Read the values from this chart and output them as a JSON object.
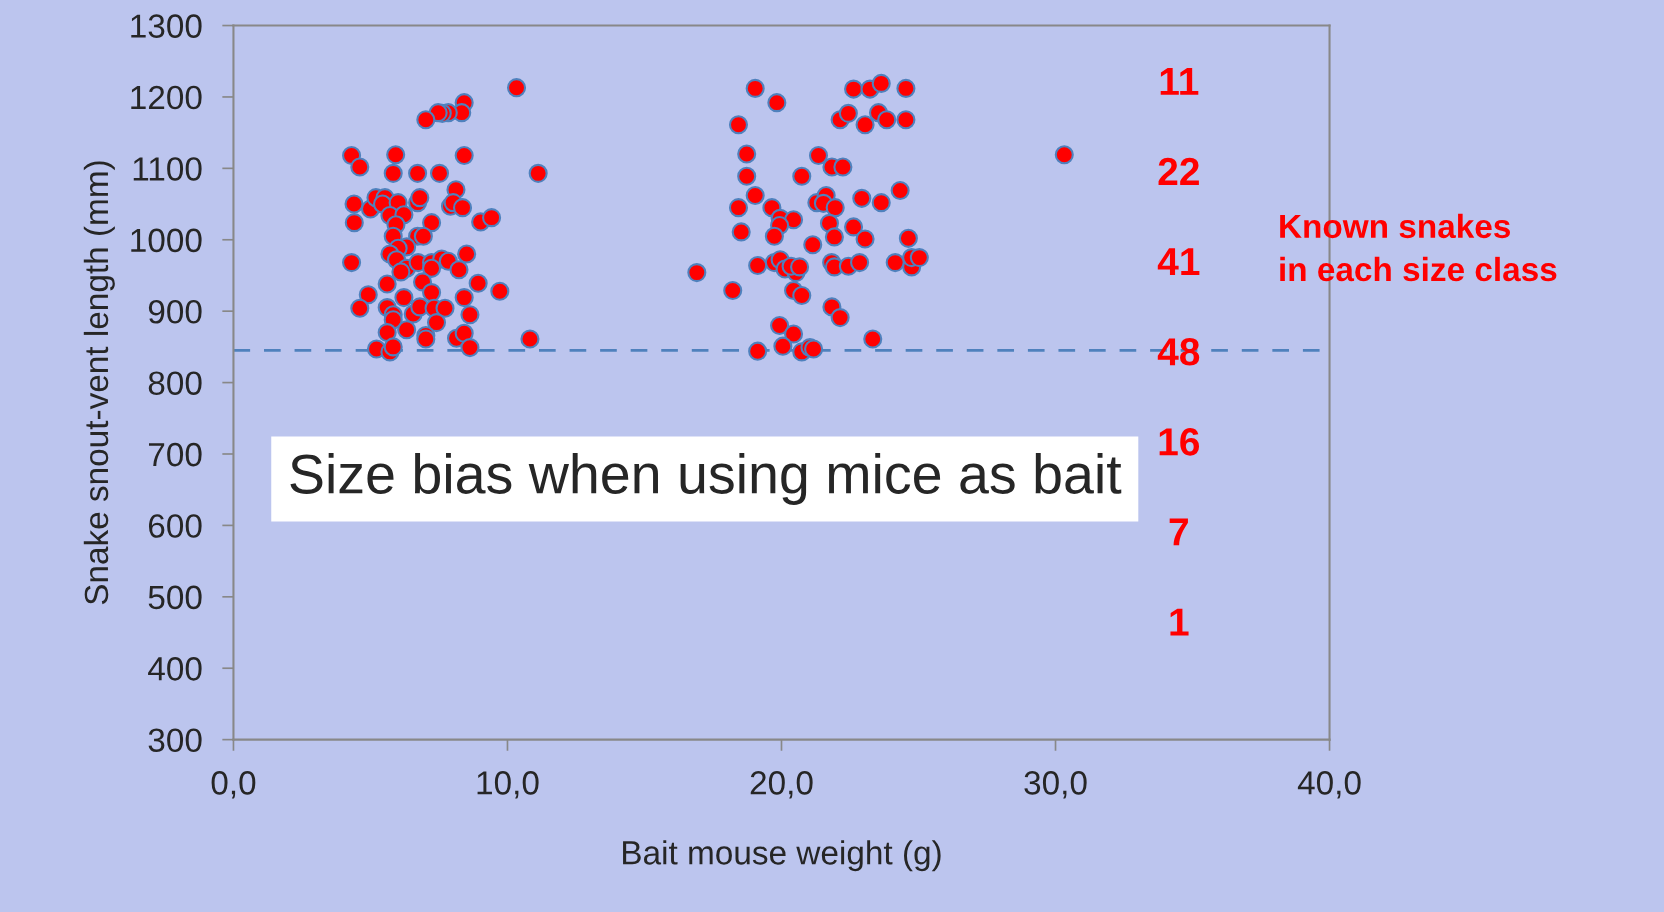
{
  "chart_data": {
    "type": "scatter",
    "title": "Size bias when using mice as bait",
    "xlabel": "Bait mouse weight (g)",
    "ylabel": "Snake snout-vent length (mm)",
    "xlim": [
      0,
      40
    ],
    "xticks": [
      {
        "value": 0,
        "label": "0,0"
      },
      {
        "value": 10,
        "label": "10,0"
      },
      {
        "value": 20,
        "label": "20,0"
      },
      {
        "value": 30,
        "label": "30,0"
      },
      {
        "value": 40,
        "label": "40,0"
      }
    ],
    "ylim": [
      300,
      1300
    ],
    "yticks": [
      300,
      400,
      500,
      600,
      700,
      800,
      900,
      1000,
      1100,
      1200,
      1300
    ],
    "grid": false,
    "legend": false,
    "marker": "circle",
    "series": [
      {
        "color": "#ff0000",
        "x": [
          10.33,
          8.42,
          8.33,
          7.84,
          7.62,
          7.47,
          7.02,
          4.31,
          4.61,
          5.92,
          8.42,
          11.12,
          5.83,
          6.72,
          7.52,
          8.12,
          4.4,
          5.0,
          5.2,
          5.53,
          5.44,
          6.01,
          5.71,
          6.22,
          6.72,
          6.8,
          7.92,
          8.02,
          8.36,
          4.41,
          5.93,
          7.23,
          9.02,
          9.42,
          5.83,
          6.72,
          6.93,
          6.32,
          6.01,
          5.71,
          4.31,
          8.51,
          5.95,
          6.32,
          6.11,
          6.74,
          7.23,
          7.6,
          7.84,
          7.23,
          8.23,
          6.9,
          5.61,
          8.93,
          9.72,
          7.23,
          4.92,
          6.22,
          8.42,
          4.61,
          5.61,
          5.83,
          6.56,
          6.8,
          7.32,
          7.72,
          8.63,
          7.41,
          5.83,
          5.61,
          6.32,
          7.02,
          7.02,
          8.14,
          8.42,
          10.82,
          5.22,
          5.71,
          5.83,
          8.63,
          19.04,
          19.83,
          18.43,
          22.63,
          23.23,
          23.64,
          24.54,
          22.14,
          22.44,
          23.05,
          23.54,
          23.84,
          24.54,
          18.73,
          21.35,
          21.84,
          22.24,
          18.73,
          20.74,
          19.04,
          24.33,
          22.93,
          23.64,
          18.43,
          19.65,
          21.29,
          21.63,
          21.53,
          21.96,
          19.95,
          20.44,
          19.93,
          19.74,
          21.75,
          22.63,
          21.93,
          23.05,
          24.63,
          18.53,
          21.14,
          16.91,
          19.13,
          19.74,
          19.95,
          20.13,
          20.53,
          20.35,
          20.66,
          21.83,
          21.93,
          22.44,
          22.85,
          24.15,
          24.75,
          24.75,
          25.03,
          18.22,
          20.44,
          20.74,
          21.84,
          22.14,
          19.93,
          20.44,
          23.33,
          20.05,
          19.13,
          20.74,
          21.04,
          21.17,
          30.32
        ],
        "values": [
          1213,
          1192,
          1178,
          1178,
          1177,
          1178,
          1168,
          1118,
          1102,
          1119,
          1118,
          1093,
          1093,
          1093,
          1093,
          1070,
          1050,
          1043,
          1059,
          1059,
          1050,
          1052,
          1034,
          1035,
          1052,
          1059,
          1047,
          1052,
          1045,
          1024,
          1021,
          1024,
          1025,
          1031,
          1005,
          1005,
          1005,
          990,
          988,
          980,
          968,
          980,
          972,
          960,
          955,
          968,
          968,
          973,
          970,
          960,
          958,
          941,
          938,
          939,
          928,
          926,
          923,
          919,
          919,
          904,
          905,
          895,
          896,
          906,
          904,
          904,
          895,
          884,
          888,
          870,
          874,
          866,
          861,
          862,
          869,
          861,
          847,
          843,
          850,
          849,
          1212,
          1192,
          1161,
          1211,
          1211,
          1219,
          1212,
          1168,
          1177,
          1161,
          1178,
          1168,
          1168,
          1120,
          1118,
          1102,
          1102,
          1089,
          1089,
          1062,
          1069,
          1058,
          1052,
          1045,
          1045,
          1052,
          1062,
          1051,
          1045,
          1030,
          1028,
          1020,
          1005,
          1023,
          1018,
          1004,
          1001,
          1002,
          1011,
          993,
          954,
          964,
          968,
          972,
          959,
          954,
          963,
          962,
          968,
          962,
          963,
          968,
          968,
          962,
          975,
          975,
          929,
          929,
          922,
          906,
          891,
          880,
          868,
          861,
          851,
          844,
          843,
          849,
          847,
          1119
        ]
      }
    ],
    "ref_lines": [
      {
        "axis": "y",
        "value": 845,
        "color": "#4f81bd",
        "line_style": "dashed"
      }
    ],
    "annotations": [
      "11",
      "22",
      "41",
      "48",
      "16",
      "7",
      "1",
      "Known snakes\nin each size class"
    ]
  }
}
